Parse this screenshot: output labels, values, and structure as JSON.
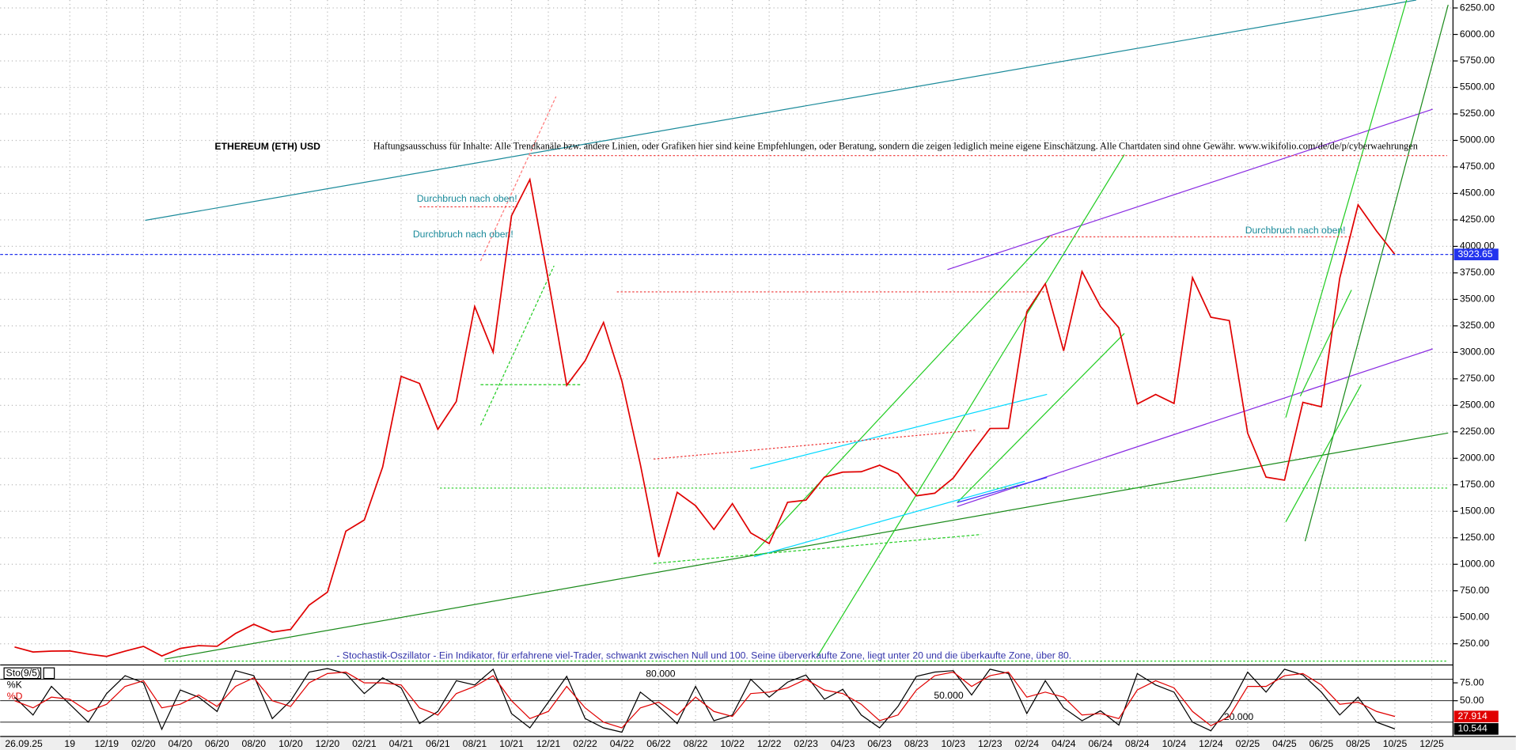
{
  "date": "26.09.25",
  "annotations": [
    "Durchbruch nach oben!",
    "Durchbruch nach oben!",
    "Durchbruch nach oben!"
  ],
  "disclaimer": "Haftungsausschuss für Inhalte: Alle Trendkanäle bzw. andere Linien, oder Grafiken hier sind keine Empfehlungen, oder Beratung, sondern die zeigen lediglich meine eigene Einschätzung. Alle Chartdaten sind ohne Gewähr. www.wikifolio.com/de/de/p/cyberwaehrungen",
  "note": "- Stochastik-Oszillator - Ein Indikator, für erfahrene viel-Trader, schwankt zwischen Null und 100. Seine überverkaufte Zone, liegt unter 20 und die überkaufte Zone, über 80.",
  "chart_data": [
    {
      "type": "line",
      "title": "ETHEREUM (ETH) USD",
      "categories": [
        null,
        null,
        null,
        "19",
        null,
        "12/19",
        null,
        "02/20",
        null,
        "04/20",
        null,
        "06/20",
        null,
        "08/20",
        null,
        "10/20",
        null,
        "12/20",
        null,
        "02/21",
        null,
        "04/21",
        null,
        "06/21",
        null,
        "08/21",
        null,
        "10/21",
        null,
        "12/21",
        null,
        "02/22",
        null,
        "04/22",
        null,
        "06/22",
        null,
        "08/22",
        null,
        "10/22",
        null,
        "12/22",
        null,
        "02/23",
        null,
        "04/23",
        null,
        "06/23",
        null,
        "08/23",
        null,
        "10/23",
        null,
        "12/23",
        null,
        "02/24",
        null,
        "04/24",
        null,
        "06/24",
        null,
        "08/24",
        null,
        "10/24",
        null,
        "12/24",
        null,
        "02/25",
        null,
        "04/25",
        null,
        "06/25",
        null,
        "08/25",
        null,
        "10/25",
        null,
        "12/25"
      ],
      "series": [
        {
          "color": "#e00000",
          "values": [
            220,
            172,
            180,
            182,
            152,
            130,
            180,
            225,
            135,
            206,
            232,
            226,
            346,
            434,
            360,
            386,
            615,
            737,
            1312,
            1418,
            1918,
            2773,
            2707,
            2274,
            2536,
            3433,
            3001,
            4288,
            4631,
            3683,
            2689,
            2921,
            3282,
            2729,
            1942,
            1070,
            1679,
            1553,
            1329,
            1572,
            1296,
            1196,
            1585,
            1605,
            1822,
            1870,
            1873,
            1934,
            1856,
            1646,
            1671,
            1814,
            2052,
            2282,
            2283,
            3384,
            3647,
            3014,
            3763,
            3433,
            3232,
            2513,
            2603,
            2518,
            3705,
            3332,
            3300,
            2237,
            1822,
            1794,
            2528,
            2486,
            3698,
            4392,
            4145,
            3923.65,
            null,
            null
          ]
        }
      ],
      "ylim": [
        50,
        6325
      ],
      "yticks": [
        {
          "value": 250,
          "label": "250.00"
        },
        {
          "value": 500,
          "label": "500.00"
        },
        {
          "value": 750,
          "label": "750.00"
        },
        {
          "value": 1000,
          "label": "1000.00"
        },
        {
          "value": 1250,
          "label": "1250.00"
        },
        {
          "value": 1500,
          "label": "1500.00"
        },
        {
          "value": 1750,
          "label": "1750.00"
        },
        {
          "value": 2000,
          "label": "2000.00"
        },
        {
          "value": 2250,
          "label": "2250.00"
        },
        {
          "value": 2500,
          "label": "2500.00"
        },
        {
          "value": 2750,
          "label": "2750.00"
        },
        {
          "value": 3000,
          "label": "3000.00"
        },
        {
          "value": 3250,
          "label": "3250.00"
        },
        {
          "value": 3500,
          "label": "3500.00"
        },
        {
          "value": 3750,
          "label": "3750.00"
        },
        {
          "value": 4000,
          "label": "4000.00"
        },
        {
          "value": 4250,
          "label": "4250.00"
        },
        {
          "value": 4500,
          "label": "4500.00"
        },
        {
          "value": 4750,
          "label": "4750.00"
        },
        {
          "value": 5000,
          "label": "5000.00"
        },
        {
          "value": 5250,
          "label": "5250.00"
        },
        {
          "value": 5500,
          "label": "5500.00"
        },
        {
          "value": 5750,
          "label": "5750.00"
        },
        {
          "value": 6000,
          "label": "6000.00"
        },
        {
          "value": 6250,
          "label": "6250.00"
        }
      ],
      "grid": true
    },
    {
      "type": "line",
      "title": "Sto(9/5)",
      "series": [
        {
          "name": "%K",
          "color": "#000000",
          "values": [
            55,
            30,
            70,
            45,
            20,
            60,
            85,
            75,
            10,
            65,
            55,
            35,
            92,
            85,
            25,
            50,
            90,
            95,
            88,
            60,
            82,
            68,
            18,
            35,
            78,
            72,
            94,
            32,
            12,
            48,
            84,
            25,
            12,
            6,
            62,
            42,
            18,
            70,
            22,
            30,
            80,
            55,
            76,
            86,
            52,
            66,
            30,
            12,
            42,
            84,
            90,
            92,
            58,
            94,
            88,
            32,
            78,
            40,
            22,
            36,
            16,
            88,
            72,
            62,
            20,
            8,
            42,
            90,
            62,
            94,
            86,
            62,
            30,
            55,
            20,
            10.544,
            null,
            null
          ]
        },
        {
          "name": "%D",
          "color": "#e00000",
          "values": [
            50,
            40,
            55,
            52,
            35,
            45,
            70,
            78,
            40,
            45,
            58,
            42,
            70,
            82,
            50,
            42,
            75,
            88,
            90,
            75,
            75,
            72,
            40,
            30,
            60,
            70,
            85,
            50,
            25,
            35,
            70,
            40,
            20,
            12,
            40,
            48,
            30,
            55,
            35,
            28,
            60,
            62,
            68,
            80,
            65,
            60,
            45,
            22,
            30,
            65,
            85,
            90,
            70,
            85,
            90,
            55,
            62,
            55,
            30,
            32,
            25,
            65,
            78,
            68,
            35,
            15,
            28,
            70,
            70,
            85,
            88,
            72,
            45,
            48,
            35,
            27.914,
            null,
            null
          ]
        }
      ],
      "ylim": [
        0,
        100
      ],
      "yticks": [
        {
          "value": 50,
          "label": "50.00"
        },
        {
          "value": 75,
          "label": "75.00"
        }
      ],
      "levels": [
        {
          "value": 80,
          "label": "80.000"
        },
        {
          "value": 50,
          "label": "50.000"
        },
        {
          "value": 20,
          "label": "20.000"
        }
      ]
    }
  ]
}
